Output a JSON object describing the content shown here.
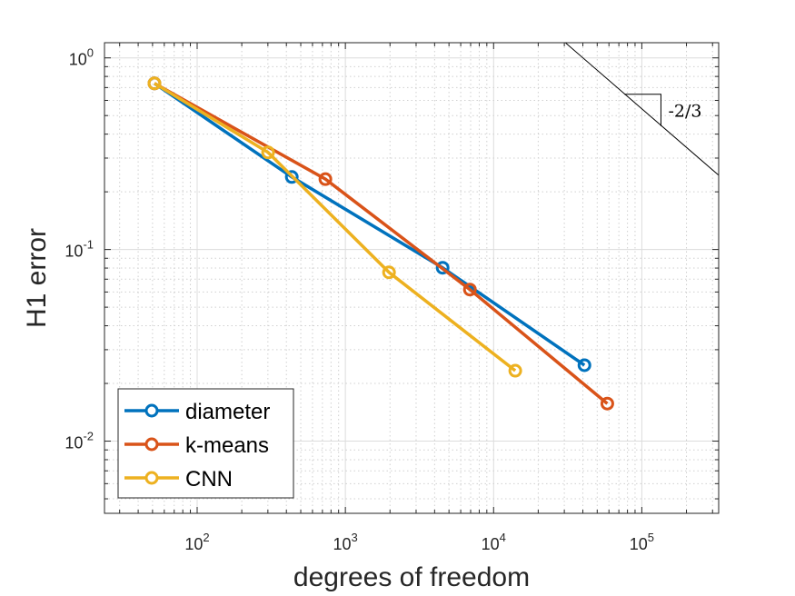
{
  "chart_data": {
    "type": "line",
    "xlabel": "degrees of freedom",
    "ylabel": "H1 error",
    "xscale": "log",
    "yscale": "log",
    "xlim": [
      23.7,
      330000
    ],
    "ylim": [
      0.0042,
      1.2
    ],
    "x_ticks": [
      100,
      1000,
      10000,
      100000
    ],
    "x_tick_labels": [
      {
        "base": "10",
        "exp": "2"
      },
      {
        "base": "10",
        "exp": "3"
      },
      {
        "base": "10",
        "exp": "4"
      },
      {
        "base": "10",
        "exp": "5"
      }
    ],
    "y_ticks": [
      1,
      0.1,
      0.01
    ],
    "y_tick_labels": [
      {
        "base": "10",
        "exp": "0"
      },
      {
        "base": "10",
        "exp": "-1"
      },
      {
        "base": "10",
        "exp": "-2"
      }
    ],
    "grid": {
      "major": true,
      "minor": true
    },
    "legend_placement": "bottom-left",
    "series": [
      {
        "name": "diameter",
        "color": "#0072BD",
        "marker": "circle",
        "x": [
          51.5,
          435,
          4530,
          41000
        ],
        "y": [
          0.736,
          0.239,
          0.0803,
          0.0249
        ]
      },
      {
        "name": "k-means",
        "color": "#D95319",
        "marker": "circle",
        "x": [
          51.5,
          733,
          6920,
          58500
        ],
        "y": [
          0.736,
          0.233,
          0.0618,
          0.0157
        ]
      },
      {
        "name": "CNN",
        "color": "#EDB120",
        "marker": "circle",
        "x": [
          51.5,
          301,
          1970,
          14000
        ],
        "y": [
          0.736,
          0.321,
          0.076,
          0.0233
        ]
      }
    ],
    "annotation": {
      "label": "-2/3",
      "reference_line": {
        "x": [
          30500,
          330000
        ],
        "y": [
          1.2,
          0.244
        ]
      },
      "triangle": {
        "x": [
          76400,
          134600
        ],
        "y": [
          0.646,
          0.44
        ]
      }
    }
  }
}
